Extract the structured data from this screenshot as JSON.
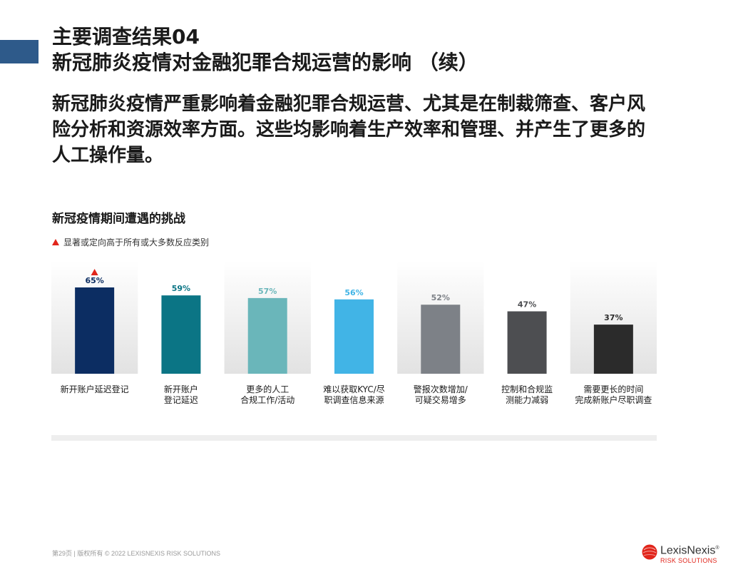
{
  "header": {
    "title_line1": "主要调查结果04",
    "title_line2": "新冠肺炎疫情对金融犯罪合规运营的影响 （续）",
    "subtitle": "新冠肺炎疫情严重影响着金融犯罪合规运营、尤其是在制裁筛查、客户风险分析和资源效率方面。这些均影响着生产效率和管理、并产生了更多的人工操作量。"
  },
  "legend": {
    "text": "显著或定向高于所有或大多数反应类别",
    "marker_color": "#e1251b"
  },
  "chart_data": {
    "type": "bar",
    "title": "新冠疫情期间遭遇的挑战",
    "categories": [
      [
        "新开账户延迟登记"
      ],
      [
        "新开账户",
        "登记延迟"
      ],
      [
        "更多的人工",
        "合规工作/活动"
      ],
      [
        "难以获取KYC/尽",
        "职调查信息来源"
      ],
      [
        "警报次数增加/",
        "可疑交易增多"
      ],
      [
        "控制和合规监",
        "测能力减弱"
      ],
      [
        "需要更长的时间",
        "完成新账户尽职调查"
      ]
    ],
    "values": [
      65,
      59,
      57,
      56,
      52,
      47,
      37
    ],
    "value_labels": [
      "65%",
      "59%",
      "57%",
      "56%",
      "52%",
      "47%",
      "37%"
    ],
    "bar_colors": [
      "#0c2d62",
      "#0b7585",
      "#6ab6ba",
      "#41b4e6",
      "#7d8187",
      "#4d4e51",
      "#2b2b2b"
    ],
    "label_colors": [
      "#0c2d62",
      "#0b7585",
      "#6ab6ba",
      "#41b4e6",
      "#7d8187",
      "#4d4e51",
      "#2b2b2b"
    ],
    "significant": [
      true,
      false,
      false,
      false,
      false,
      false,
      false
    ],
    "ylim": [
      0,
      100
    ],
    "xlabel": "",
    "ylabel": ""
  },
  "footer": {
    "text": "第29页 |  版权所有 © 2022 LEXISNEXIS RISK SOLUTIONS"
  },
  "logo": {
    "name": "LexisNexis",
    "registered": "®",
    "sub": "RISK SOLUTIONS",
    "color": "#e1251b"
  }
}
